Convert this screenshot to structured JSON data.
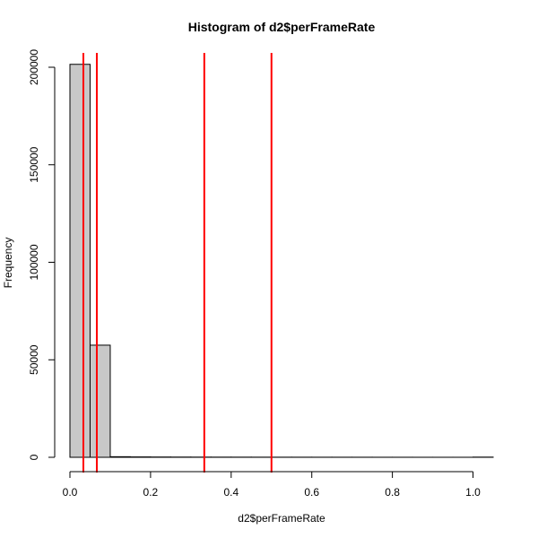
{
  "chart_data": {
    "type": "bar",
    "title": "Histogram of d2$perFrameRate",
    "xlabel": "d2$perFrameRate",
    "ylabel": "Frequency",
    "xlim": [
      0,
      1.05
    ],
    "ylim": [
      0,
      200000
    ],
    "x_ticks": [
      0.0,
      0.2,
      0.4,
      0.6,
      0.8,
      1.0
    ],
    "x_tick_labels": [
      "0.0",
      "0.2",
      "0.4",
      "0.6",
      "0.8",
      "1.0"
    ],
    "y_ticks": [
      0,
      50000,
      100000,
      150000,
      200000
    ],
    "y_tick_labels": [
      "0",
      "50000",
      "100000",
      "150000",
      "200000"
    ],
    "bin_width": 0.05,
    "bins": [
      {
        "start": 0.0,
        "end": 0.05,
        "count": 201500
      },
      {
        "start": 0.05,
        "end": 0.1,
        "count": 57500
      },
      {
        "start": 0.1,
        "end": 0.15,
        "count": 300
      },
      {
        "start": 0.15,
        "end": 0.2,
        "count": 200
      },
      {
        "start": 0.2,
        "end": 0.25,
        "count": 150
      },
      {
        "start": 0.25,
        "end": 0.3,
        "count": 120
      },
      {
        "start": 0.3,
        "end": 0.35,
        "count": 100
      },
      {
        "start": 0.35,
        "end": 0.4,
        "count": 90
      },
      {
        "start": 0.4,
        "end": 0.45,
        "count": 80
      },
      {
        "start": 0.45,
        "end": 0.5,
        "count": 70
      },
      {
        "start": 0.5,
        "end": 0.55,
        "count": 60
      },
      {
        "start": 0.55,
        "end": 0.6,
        "count": 55
      },
      {
        "start": 0.6,
        "end": 0.65,
        "count": 50
      },
      {
        "start": 0.65,
        "end": 0.7,
        "count": 45
      },
      {
        "start": 0.7,
        "end": 0.75,
        "count": 40
      },
      {
        "start": 0.75,
        "end": 0.8,
        "count": 35
      },
      {
        "start": 0.8,
        "end": 0.85,
        "count": 30
      },
      {
        "start": 0.85,
        "end": 0.9,
        "count": 25
      },
      {
        "start": 0.9,
        "end": 0.95,
        "count": 20
      },
      {
        "start": 0.95,
        "end": 1.0,
        "count": 20
      },
      {
        "start": 1.0,
        "end": 1.05,
        "count": 100
      }
    ],
    "vertical_lines": [
      0.0333,
      0.0667,
      0.3333,
      0.5
    ],
    "vertical_line_color": "#ff0000",
    "bar_fill": "#c8c8c8"
  }
}
